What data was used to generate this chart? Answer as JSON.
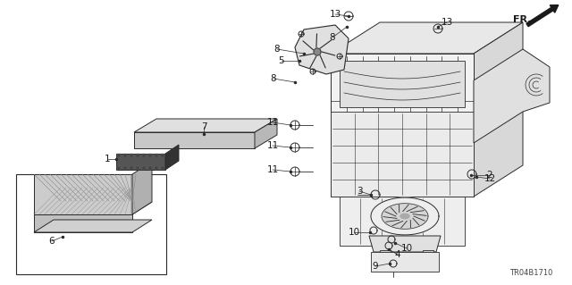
{
  "background_color": "#ffffff",
  "line_color": "#2a2a2a",
  "text_color": "#1a1a1a",
  "diagram_code": "TR04B1710",
  "fig_width": 6.4,
  "fig_height": 3.19,
  "dpi": 100
}
